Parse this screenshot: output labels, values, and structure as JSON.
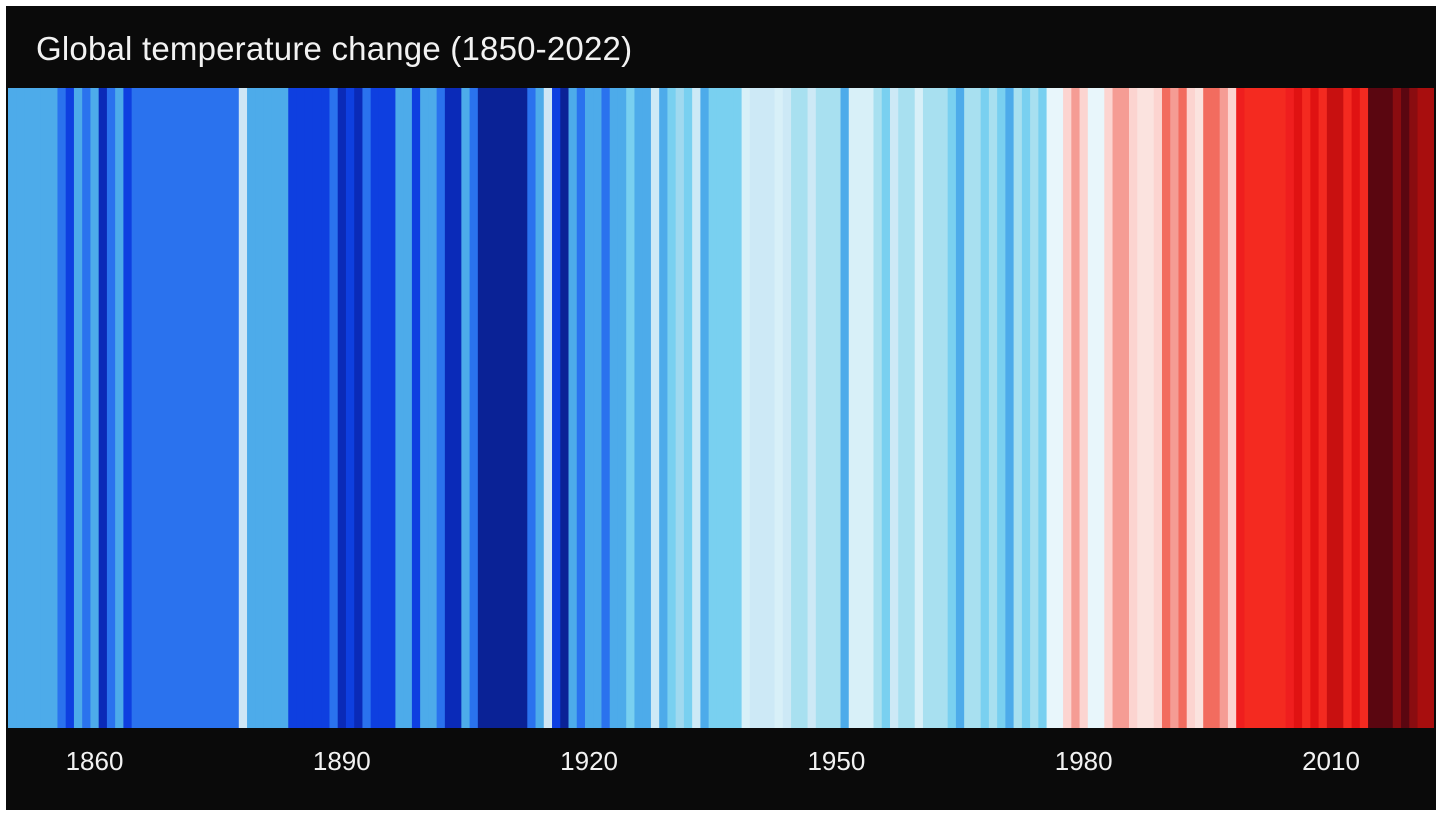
{
  "chart_data": {
    "type": "heatmap",
    "title": "Global temperature change (1850-2022)",
    "xlabel": "",
    "ylabel": "",
    "x_range": [
      1850,
      2022
    ],
    "x_ticks": [
      1860,
      1890,
      1920,
      1950,
      1980,
      2010
    ],
    "x_tick_labels": [
      "1860",
      "1890",
      "1920",
      "1950",
      "1980",
      "2010"
    ],
    "legend": "none",
    "grid": false,
    "years": [
      1850,
      1851,
      1852,
      1853,
      1854,
      1855,
      1856,
      1857,
      1858,
      1859,
      1860,
      1861,
      1862,
      1863,
      1864,
      1865,
      1866,
      1867,
      1868,
      1869,
      1870,
      1871,
      1872,
      1873,
      1874,
      1875,
      1876,
      1877,
      1878,
      1879,
      1880,
      1881,
      1882,
      1883,
      1884,
      1885,
      1886,
      1887,
      1888,
      1889,
      1890,
      1891,
      1892,
      1893,
      1894,
      1895,
      1896,
      1897,
      1898,
      1899,
      1900,
      1901,
      1902,
      1903,
      1904,
      1905,
      1906,
      1907,
      1908,
      1909,
      1910,
      1911,
      1912,
      1913,
      1914,
      1915,
      1916,
      1917,
      1918,
      1919,
      1920,
      1921,
      1922,
      1923,
      1924,
      1925,
      1926,
      1927,
      1928,
      1929,
      1930,
      1931,
      1932,
      1933,
      1934,
      1935,
      1936,
      1937,
      1938,
      1939,
      1940,
      1941,
      1942,
      1943,
      1944,
      1945,
      1946,
      1947,
      1948,
      1949,
      1950,
      1951,
      1952,
      1953,
      1954,
      1955,
      1956,
      1957,
      1958,
      1959,
      1960,
      1961,
      1962,
      1963,
      1964,
      1965,
      1966,
      1967,
      1968,
      1969,
      1970,
      1971,
      1972,
      1973,
      1974,
      1975,
      1976,
      1977,
      1978,
      1979,
      1980,
      1981,
      1982,
      1983,
      1984,
      1985,
      1986,
      1987,
      1988,
      1989,
      1990,
      1991,
      1992,
      1993,
      1994,
      1995,
      1996,
      1997,
      1998,
      1999,
      2000,
      2001,
      2002,
      2003,
      2004,
      2005,
      2006,
      2007,
      2008,
      2009,
      2010,
      2011,
      2012,
      2013,
      2014,
      2015,
      2016,
      2017,
      2018,
      2019,
      2020,
      2021,
      2022
    ],
    "stripe_colors": [
      "#4dabea",
      "#4dabea",
      "#4dabea",
      "#4dabea",
      "#4dabea",
      "#4dabea",
      "#2a72ee",
      "#0e3fe0",
      "#4dabea",
      "#2a72ee",
      "#4dabea",
      "#0a2ab8",
      "#2a72ee",
      "#4dabea",
      "#0e3fe0",
      "#2a72ee",
      "#2a72ee",
      "#2a72ee",
      "#2a72ee",
      "#2a72ee",
      "#2a72ee",
      "#2a72ee",
      "#2a72ee",
      "#2a72ee",
      "#2a72ee",
      "#2a72ee",
      "#2a72ee",
      "#2a72ee",
      "#cfe6f5",
      "#4dabea",
      "#4dabea",
      "#4dabea",
      "#4dabea",
      "#4dabea",
      "#0e3fe0",
      "#0e3fe0",
      "#0e3fe0",
      "#0e3fe0",
      "#0e3fe0",
      "#2a72ee",
      "#0a2ab8",
      "#0e3fe0",
      "#0a2ab8",
      "#2a72ee",
      "#0e3fe0",
      "#0e3fe0",
      "#0e3fe0",
      "#4dabea",
      "#4dabea",
      "#0e3fe0",
      "#4dabea",
      "#4dabea",
      "#2a72ee",
      "#0a2ab8",
      "#0a2ab8",
      "#4dabea",
      "#2a72ee",
      "#0a2296",
      "#0a2296",
      "#0a2296",
      "#0a2296",
      "#0a2296",
      "#0a2296",
      "#2a72ee",
      "#4dabea",
      "#cfe6f5",
      "#0e3fe0",
      "#0a2296",
      "#4dabea",
      "#2a72ee",
      "#4dabea",
      "#4dabea",
      "#2a72ee",
      "#4dabea",
      "#4dabea",
      "#79d0f0",
      "#4dabea",
      "#4dabea",
      "#cde9f6",
      "#4dabea",
      "#79d0f0",
      "#a0d9ef",
      "#79d0f0",
      "#cde9f6",
      "#4dabea",
      "#79d0f0",
      "#79d0f0",
      "#79d0f0",
      "#79d0f0",
      "#d8f0f8",
      "#cde9f6",
      "#cde9f6",
      "#cde9f6",
      "#d8f0f8",
      "#cde9f6",
      "#a8e0f0",
      "#a8e0f0",
      "#cde9f6",
      "#a8e0f0",
      "#a8e0f0",
      "#a8e0f0",
      "#4dabea",
      "#d8f0f8",
      "#d8f0f8",
      "#d8f0f8",
      "#a8e0f0",
      "#79d0f0",
      "#cde9f6",
      "#a8e0f0",
      "#a8e0f0",
      "#d8f0f8",
      "#a8e0f0",
      "#a8e0f0",
      "#a8e0f0",
      "#79d0f0",
      "#4dabea",
      "#a8e0f0",
      "#a8e0f0",
      "#79d0f0",
      "#a8e0f0",
      "#79d0f0",
      "#4dabea",
      "#a8e0f0",
      "#79d0f0",
      "#a8e0f0",
      "#79d0f0",
      "#e8f6fb",
      "#e8f6fb",
      "#fcd4d0",
      "#f59c94",
      "#fcd4d0",
      "#e8f6fb",
      "#e8f6fb",
      "#fcd4d0",
      "#f59c94",
      "#f59c94",
      "#fcd4d0",
      "#fbe3df",
      "#fbe3df",
      "#fcd4d0",
      "#f26c5f",
      "#f59c94",
      "#f26c5f",
      "#fcd4d0",
      "#fbe3df",
      "#f26c5f",
      "#f26c5f",
      "#f59c94",
      "#fcd4d0",
      "#ef1e1e",
      "#f42a20",
      "#f42a20",
      "#f42a20",
      "#f42a20",
      "#f42a20",
      "#ef1e1e",
      "#e01212",
      "#f42a20",
      "#e01212",
      "#f42a20",
      "#c81010",
      "#c81010",
      "#f42a20",
      "#e01212",
      "#f42a20",
      "#5a0610",
      "#5a0610",
      "#5a0610",
      "#8a0c10",
      "#5a0610",
      "#8a0c10",
      "#a80e0e",
      "#a80e0e"
    ]
  }
}
